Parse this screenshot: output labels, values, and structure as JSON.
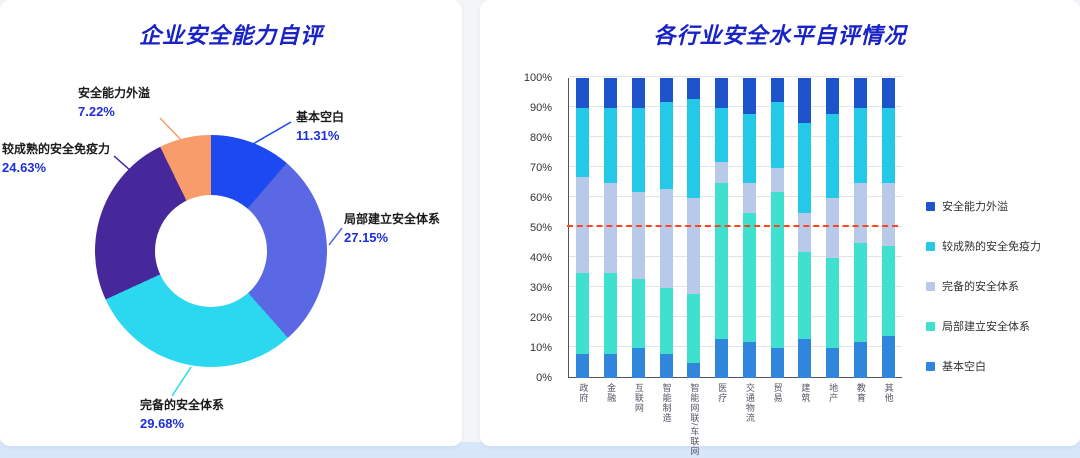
{
  "page": {
    "background": "#f3f5f9",
    "bottom_band_color": "#d8e6fa"
  },
  "chart_data": [
    {
      "type": "pie",
      "donut": true,
      "title": "企业安全能力自评",
      "title_color": "#1822c5",
      "segments": [
        {
          "label": "基本空白",
          "value": 11.31,
          "pct_label": "11.31%",
          "color": "#1d49f0"
        },
        {
          "label": "局部建立安全体系",
          "value": 27.15,
          "pct_label": "27.15%",
          "color": "#5b68e3"
        },
        {
          "label": "完备的安全体系",
          "value": 29.68,
          "pct_label": "29.68%",
          "color": "#2bd8ef"
        },
        {
          "label": "较成熟的安全免疫力",
          "value": 24.63,
          "pct_label": "24.63%",
          "color": "#46289b"
        },
        {
          "label": "安全能力外溢",
          "value": 7.22,
          "pct_label": "7.22%",
          "color": "#f89c6b"
        }
      ]
    },
    {
      "type": "bar",
      "stacked": true,
      "title": "各行业安全水平自评情况",
      "title_color": "#1822c5",
      "categories": [
        "政府",
        "金融",
        "互联网",
        "智能制造",
        "智能网联/车联网",
        "医疗",
        "交通物流",
        "贸易",
        "建筑",
        "地产",
        "教育",
        "其他"
      ],
      "series": [
        {
          "name": "基本空白",
          "color": "#2f86dc",
          "values": [
            8,
            8,
            10,
            8,
            5,
            13,
            12,
            10,
            13,
            10,
            12,
            14
          ]
        },
        {
          "name": "局部建立安全体系",
          "color": "#40e0cf",
          "values": [
            27,
            27,
            23,
            22,
            23,
            52,
            43,
            52,
            29,
            30,
            33,
            30
          ]
        },
        {
          "name": "完备的安全体系",
          "color": "#b9c9ea",
          "values": [
            32,
            30,
            29,
            33,
            32,
            7,
            10,
            8,
            13,
            20,
            20,
            21
          ]
        },
        {
          "name": "较成熟的安全免疫力",
          "color": "#25c9e8",
          "values": [
            23,
            25,
            28,
            29,
            33,
            18,
            23,
            22,
            30,
            28,
            25,
            25
          ]
        },
        {
          "name": "安全能力外溢",
          "color": "#1d54cc",
          "values": [
            10,
            10,
            10,
            8,
            7,
            10,
            12,
            8,
            15,
            12,
            10,
            10
          ]
        }
      ],
      "y_ticks": [
        "0%",
        "10%",
        "20%",
        "30%",
        "40%",
        "50%",
        "60%",
        "70%",
        "80%",
        "90%",
        "100%"
      ],
      "ylim": [
        0,
        100
      ],
      "grid": true,
      "reference_line": {
        "value": 50,
        "style": "dashed",
        "color": "#ff4621"
      },
      "legend": [
        {
          "label": "安全能力外溢",
          "color": "#1d54cc"
        },
        {
          "label": "较成熟的安全免疫力",
          "color": "#25c9e8"
        },
        {
          "label": "完备的安全体系",
          "color": "#b9c9ea"
        },
        {
          "label": "局部建立安全体系",
          "color": "#40e0cf"
        },
        {
          "label": "基本空白",
          "color": "#2f86dc"
        }
      ],
      "legend_position": "right"
    }
  ]
}
